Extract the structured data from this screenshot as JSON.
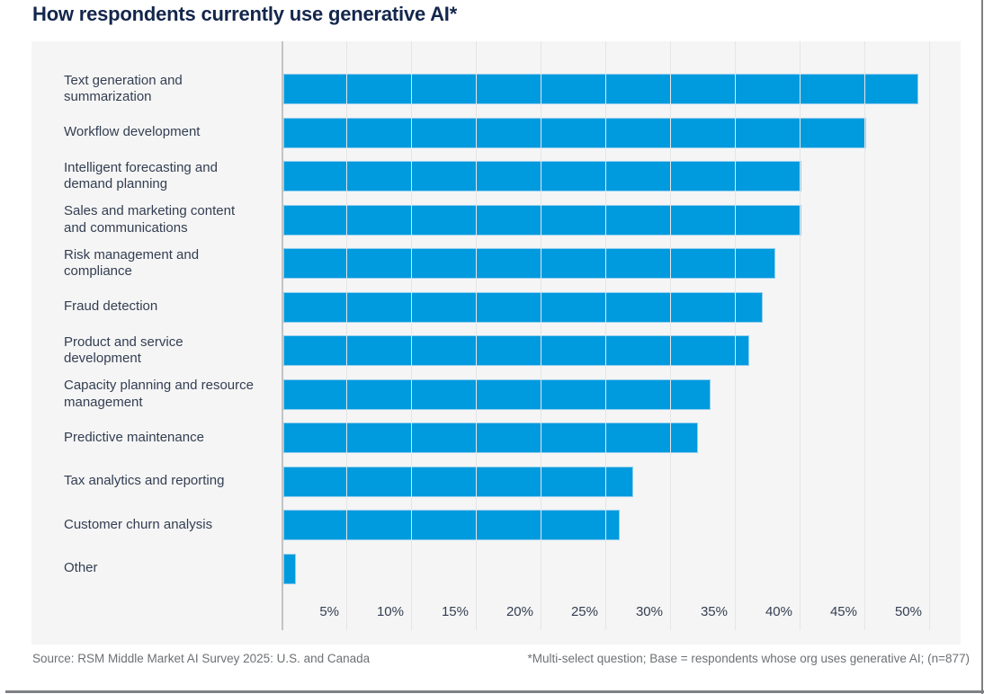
{
  "title": "How respondents currently use generative AI*",
  "chart_data": {
    "type": "bar",
    "orientation": "horizontal",
    "title": "How respondents currently use generative AI*",
    "categories": [
      "Text generation and summarization",
      "Workflow development",
      "Intelligent forecasting and demand planning",
      "Sales and marketing content and communications",
      "Risk management and compliance",
      "Fraud detection",
      "Product and service development",
      "Capacity planning and resource management",
      "Predictive maintenance",
      "Tax analytics and reporting",
      "Customer churn analysis",
      "Other"
    ],
    "values": [
      49,
      45,
      40,
      40,
      38,
      37,
      36,
      33,
      32,
      27,
      26,
      1
    ],
    "value_unit": "%",
    "xlim": [
      0,
      50
    ],
    "x_tick_step": 5,
    "x_tick_labels": [
      "5%",
      "10%",
      "15%",
      "20%",
      "25%",
      "30%",
      "35%",
      "40%",
      "45%",
      "50%"
    ],
    "grid": "vertical",
    "legend": "none"
  },
  "footer": {
    "source": "Source: RSM Middle Market AI Survey 2025: U.S. and Canada",
    "note": "*Multi-select question; Base = respondents whose org uses generative AI; (n=877)"
  },
  "colors": {
    "bar": "#009ADE",
    "bar_edge": "#92CEEF",
    "title_text": "#13264C",
    "label_text": "#333E52",
    "panel_background": "#F5F5F5",
    "gridline": "#E4E5E7",
    "axis_line": "#C2C3C5",
    "footer_text": "#6D7073",
    "page_border": "#7E8084"
  }
}
